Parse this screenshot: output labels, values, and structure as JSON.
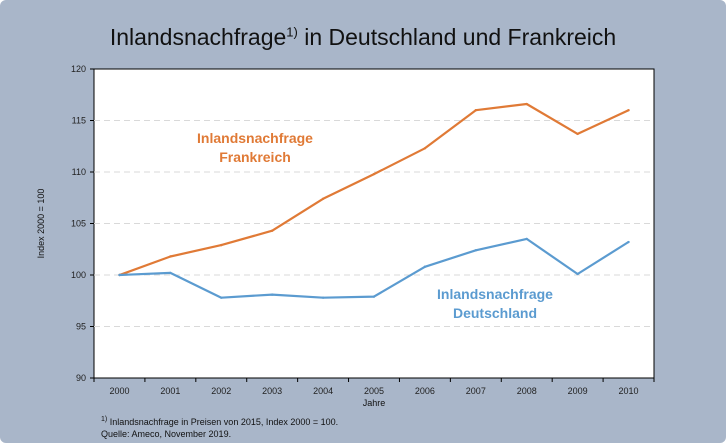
{
  "title": {
    "main": "Inlandsnachfrage",
    "sup": "1)",
    "rest": " in Deutschland und Frankreich"
  },
  "chart_data": {
    "type": "line",
    "x": [
      "2000",
      "2001",
      "2002",
      "2003",
      "2004",
      "2005",
      "2006",
      "2007",
      "2008",
      "2009",
      "2010"
    ],
    "xlabel": "Jahre",
    "ylabel": "Index 2000 = 100",
    "ylim": [
      90,
      120
    ],
    "yticks": [
      90,
      95,
      100,
      105,
      110,
      115,
      120
    ],
    "grid": "horizontal dashed",
    "series": [
      {
        "key": "fr",
        "label_line1": "Inlandsnachfrage",
        "label_line2": "Frankreich",
        "color": "#e07a36",
        "values": [
          100.0,
          101.8,
          102.9,
          104.3,
          107.4,
          109.8,
          112.3,
          116.0,
          116.6,
          113.7,
          116.0
        ]
      },
      {
        "key": "de",
        "label_line1": "Inlandsnachfrage",
        "label_line2": "Deutschland",
        "color": "#5b9bd0",
        "values": [
          100.0,
          100.2,
          97.8,
          98.1,
          97.8,
          97.9,
          100.8,
          102.4,
          103.5,
          100.1,
          103.2
        ]
      }
    ]
  },
  "footnote": {
    "line1_sup": "1)",
    "line1": " Inlandsnachfrage in Preisen von 2015, Index 2000 = 100.",
    "line2": "Quelle: Ameco, November 2019."
  }
}
